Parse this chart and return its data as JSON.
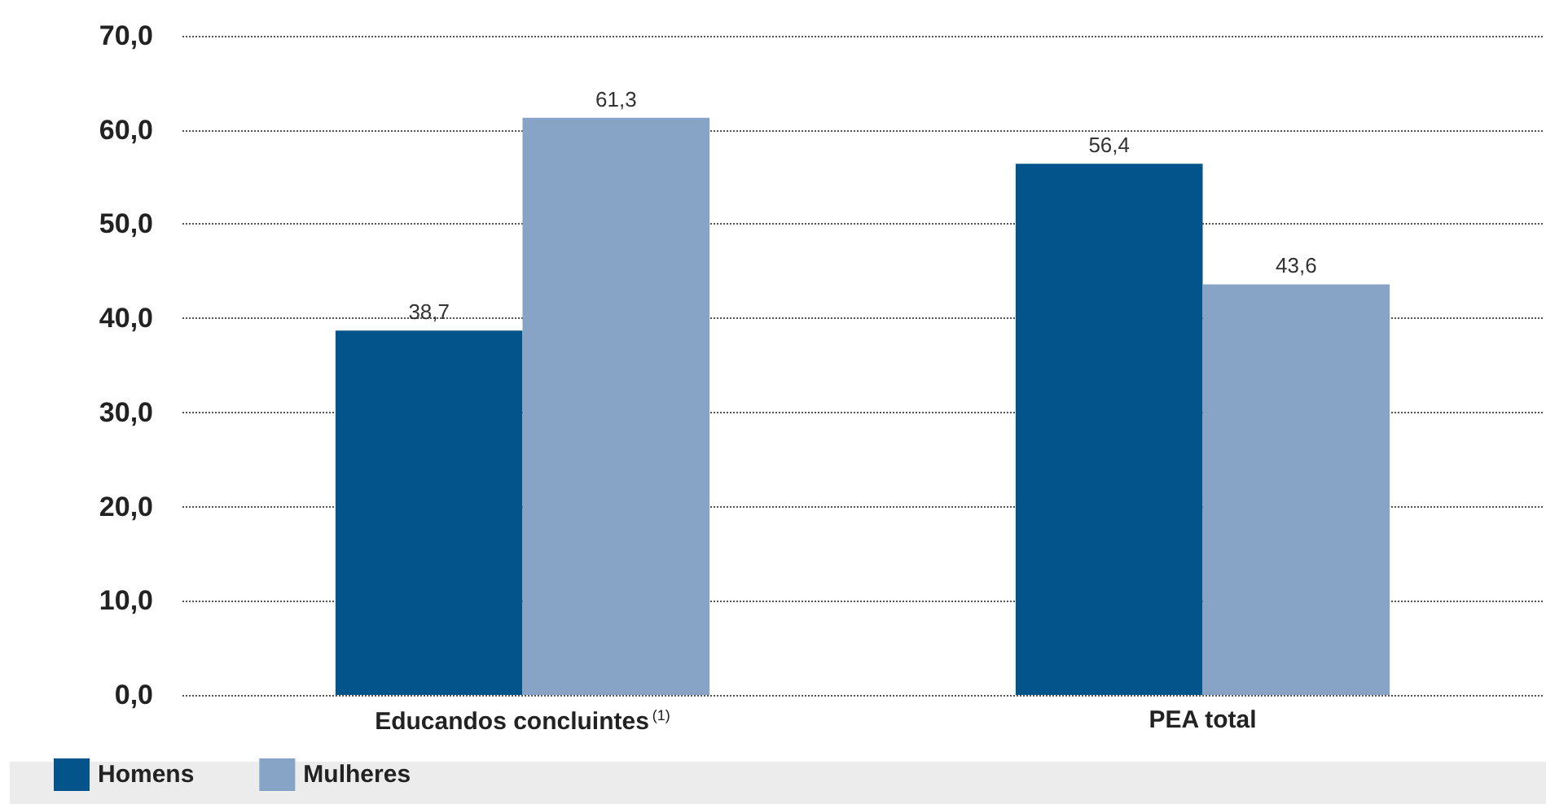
{
  "chart_data": {
    "type": "bar",
    "categories": [
      "Educandos concluintes$^{(1)}$",
      "PEA total"
    ],
    "series": [
      {
        "name": "Homens",
        "color": "#02548a",
        "values": [
          38.7,
          56.4
        ],
        "value_labels": [
          "38,7",
          "56,4"
        ]
      },
      {
        "name": "Mulheres",
        "color": "#87a4c7",
        "values": [
          61.3,
          43.6
        ],
        "value_labels": [
          "61,3",
          "43,6"
        ]
      }
    ],
    "ylim": [
      0,
      70
    ],
    "yticks": [
      {
        "value": 0,
        "label": "0,0"
      },
      {
        "value": 10,
        "label": "10,0"
      },
      {
        "value": 20,
        "label": "20,0"
      },
      {
        "value": 30,
        "label": "30,0"
      },
      {
        "value": 40,
        "label": "40,0"
      },
      {
        "value": 50,
        "label": "50,0"
      },
      {
        "value": 60,
        "label": "60,0"
      },
      {
        "value": 70,
        "label": "70,0"
      }
    ],
    "grid": "y",
    "legend": "bottom left"
  }
}
